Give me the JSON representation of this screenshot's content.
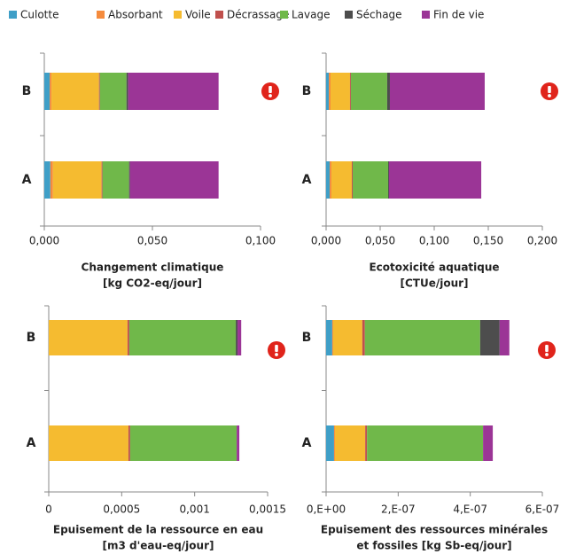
{
  "chart_data": [
    {
      "type": "bar",
      "orientation": "horizontal",
      "stacked": true,
      "xlabel": [
        "Changement climatique",
        "[kg CO2-eq/jour]"
      ],
      "categories": [
        "B",
        "A"
      ],
      "series": [
        {
          "name": "Culotte",
          "color": "#3f9fc7",
          "values": [
            0.0025,
            0.0028
          ]
        },
        {
          "name": "Absorbant",
          "color": "#f58b3d",
          "values": [
            0.0008,
            0.0012
          ]
        },
        {
          "name": "Voile",
          "color": "#f5bb30",
          "values": [
            0.022,
            0.0225
          ]
        },
        {
          "name": "Décrassage",
          "color": "#c0504d",
          "values": [
            0.0004,
            0.0004
          ]
        },
        {
          "name": "Lavage",
          "color": "#70b84a",
          "values": [
            0.0123,
            0.0123
          ]
        },
        {
          "name": "Séchage",
          "color": "#4d4d4d",
          "values": [
            0.0008,
            0.0004
          ]
        },
        {
          "name": "Fin de vie",
          "color": "#9b3596",
          "values": [
            0.0418,
            0.041
          ]
        }
      ],
      "xlim": [
        0,
        0.1
      ],
      "xticks": [
        {
          "value": 0,
          "label": "0,000"
        },
        {
          "value": 0.05,
          "label": "0,050"
        },
        {
          "value": 0.1,
          "label": "0,100"
        }
      ]
    },
    {
      "type": "bar",
      "orientation": "horizontal",
      "stacked": true,
      "xlabel": [
        "Ecotoxicité aquatique",
        "[CTUe/jour]"
      ],
      "categories": [
        "B",
        "A"
      ],
      "series": [
        {
          "color": "#3f9fc7",
          "values": [
            0.0025,
            0.0033
          ]
        },
        {
          "color": "#f58b3d",
          "values": [
            0.0016,
            0.0016
          ]
        },
        {
          "color": "#f5bb30",
          "values": [
            0.018,
            0.0189
          ]
        },
        {
          "color": "#c0504d",
          "values": [
            0.0008,
            0.0008
          ]
        },
        {
          "color": "#70b84a",
          "values": [
            0.0336,
            0.0328
          ]
        },
        {
          "color": "#4d4d4d",
          "values": [
            0.0025,
            0.0008
          ]
        },
        {
          "color": "#9b3596",
          "values": [
            0.0877,
            0.0853
          ]
        }
      ],
      "xlim": [
        0,
        0.2
      ],
      "xticks": [
        {
          "value": 0,
          "label": "0,000"
        },
        {
          "value": 0.05,
          "label": "0,050"
        },
        {
          "value": 0.1,
          "label": "0,100"
        },
        {
          "value": 0.15,
          "label": "0,150"
        },
        {
          "value": 0.2,
          "label": "0,200"
        }
      ]
    },
    {
      "type": "bar",
      "orientation": "horizontal",
      "stacked": true,
      "xlabel": [
        "Epuisement de la ressource en eau",
        "[m3 d'eau-eq/jour]"
      ],
      "categories": [
        "B",
        "A"
      ],
      "series": [
        {
          "color": "#3f9fc7",
          "values": [
            0,
            0
          ]
        },
        {
          "color": "#f58b3d",
          "values": [
            0,
            0
          ]
        },
        {
          "color": "#f5bb30",
          "values": [
            0.00054,
            0.000546
          ]
        },
        {
          "color": "#c0504d",
          "values": [
            1.2e-05,
            1.2e-05
          ]
        },
        {
          "color": "#70b84a",
          "values": [
            0.00073,
            0.00073
          ]
        },
        {
          "color": "#4d4d4d",
          "values": [
            1.2e-05,
            0
          ]
        },
        {
          "color": "#9b3596",
          "values": [
            2.5e-05,
            1.8e-05
          ]
        }
      ],
      "xlim": [
        0,
        0.0015
      ],
      "xticks": [
        0,
        {
          "value": 0.0005,
          "label": "0,0005"
        },
        {
          "value": 0.001,
          "label": "0,001"
        },
        {
          "value": 0.0015,
          "label": "0,0015"
        }
      ]
    },
    {
      "type": "bar",
      "orientation": "horizontal",
      "stacked": true,
      "xlabel": [
        "Epuisement des ressources minérales",
        "et fossiles [kg Sb-eq/jour]"
      ],
      "categories": [
        "B",
        "A"
      ],
      "series": [
        {
          "color": "#3f9fc7",
          "values": [
            1.7e-08,
            2.2e-08
          ]
        },
        {
          "color": "#f58b3d",
          "values": [
            2.5e-09,
            2.5e-09
          ]
        },
        {
          "color": "#f5bb30",
          "values": [
            8.1e-08,
            8.4e-08
          ]
        },
        {
          "color": "#c0504d",
          "values": [
            7e-09,
            5e-09
          ]
        },
        {
          "color": "#70b84a",
          "values": [
            3.2e-07,
            3.22e-07
          ]
        },
        {
          "color": "#4d4d4d",
          "values": [
            5.4e-08,
            0
          ]
        },
        {
          "color": "#9b3596",
          "values": [
            2.7e-08,
            2.7e-08
          ]
        }
      ],
      "xlim": [
        0,
        6e-07
      ],
      "xticks": [
        {
          "value": 0,
          "label": "0,E+00"
        },
        {
          "value": 2e-07,
          "label": "2,E-07"
        },
        {
          "value": 4e-07,
          "label": "4,E-07"
        },
        {
          "value": 6e-07,
          "label": "6,E-07"
        }
      ]
    }
  ]
}
